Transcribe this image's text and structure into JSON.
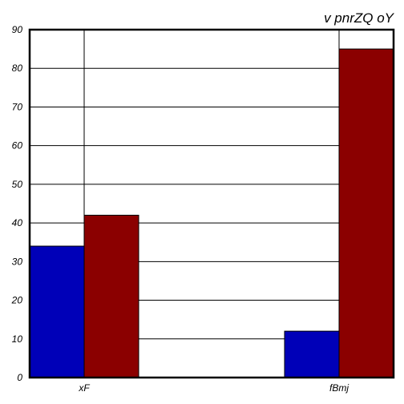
{
  "chart_data": {
    "type": "bar",
    "title": "v  pnrZQ  oY",
    "xlabel": "",
    "ylabel": "",
    "categories": [
      "xF",
      "fBmj"
    ],
    "series": [
      {
        "values": [
          34,
          12
        ],
        "color": "#0000b8"
      },
      {
        "values": [
          42,
          85
        ],
        "color": "#8b0000"
      }
    ],
    "ylim": [
      0,
      90
    ],
    "yticks": [
      0,
      10,
      20,
      30,
      40,
      50,
      60,
      70,
      80,
      90
    ],
    "grid": true
  }
}
